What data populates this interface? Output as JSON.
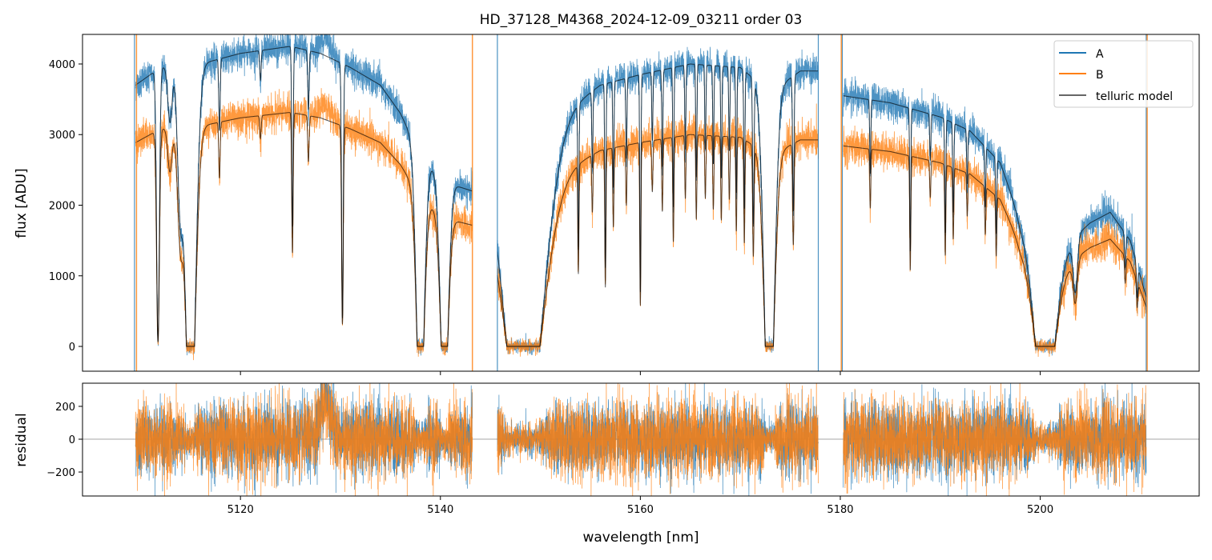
{
  "chart_data": [
    {
      "type": "line",
      "title": "HD_37128_M4368_2024-12-09_03211  order 03",
      "xlabel": "wavelength [nm]",
      "ylabel": "flux [ADU]",
      "xlim": [
        5104.2,
        5215.9
      ],
      "ylim": [
        -351,
        4419
      ],
      "xticks": [
        5120,
        5140,
        5160,
        5180,
        5200
      ],
      "xtick_labels": [
        "5120",
        "5140",
        "5160",
        "5180",
        "5200"
      ],
      "yticks": [
        0,
        1000,
        2000,
        3000,
        4000
      ],
      "ytick_labels": [
        "0",
        "1000",
        "2000",
        "3000",
        "4000"
      ],
      "legend": {
        "placement": "top-right",
        "entries": [
          "A",
          "B",
          "telluric model"
        ]
      },
      "colors": {
        "A": "#1f77b4",
        "B": "#ff7f0e",
        "model": "#000000"
      },
      "noise_sigma": {
        "A": 110,
        "B": 120
      },
      "segments": [
        {
          "range": [
            5109.5,
            5143.2
          ],
          "b_scale": 0.78,
          "continuum_A": [
            [
              5109.5,
              3700
            ],
            [
              5112,
              3950
            ],
            [
              5116,
              4000
            ],
            [
              5120,
              4150
            ],
            [
              5125,
              4250
            ],
            [
              5128,
              4150
            ],
            [
              5131,
              3950
            ],
            [
              5134,
              3700
            ],
            [
              5136,
              3300
            ],
            [
              5138,
              2700
            ],
            [
              5141,
              2300
            ],
            [
              5143.2,
              2200
            ]
          ],
          "lines": [
            [
              5111.75,
              0.98,
              0.2
            ],
            [
              5112.95,
              0.2,
              0.3
            ],
            [
              5114.0,
              0.5,
              0.4
            ],
            [
              5115.0,
              1.4,
              0.7
            ],
            [
              5117.9,
              0.25,
              0.1
            ],
            [
              5122.0,
              0.1,
              0.1
            ],
            [
              5125.2,
              0.6,
              0.1
            ],
            [
              5126.8,
              0.2,
              0.1
            ],
            [
              5130.2,
              0.9,
              0.12
            ],
            [
              5138.0,
              1.4,
              0.55
            ],
            [
              5140.4,
              1.4,
              0.55
            ]
          ]
        },
        {
          "range": [
            5145.7,
            5177.8
          ],
          "b_scale": 0.75,
          "continuum_A": [
            [
              5145.7,
              3000
            ],
            [
              5152,
              3300
            ],
            [
              5156,
              3700
            ],
            [
              5160,
              3850
            ],
            [
              5165,
              4000
            ],
            [
              5170,
              3950
            ],
            [
              5173,
              3600
            ],
            [
              5176,
              3900
            ],
            [
              5177.8,
              3900
            ]
          ],
          "lines": [
            [
              5148.3,
              1.5,
              2.6
            ],
            [
              5153.8,
              0.6,
              0.08
            ],
            [
              5155.2,
              0.3,
              0.08
            ],
            [
              5156.5,
              0.7,
              0.08
            ],
            [
              5157.3,
              0.4,
              0.08
            ],
            [
              5158.6,
              0.3,
              0.08
            ],
            [
              5160.0,
              0.8,
              0.08
            ],
            [
              5161.2,
              0.25,
              0.08
            ],
            [
              5162.2,
              0.35,
              0.08
            ],
            [
              5163.3,
              0.5,
              0.08
            ],
            [
              5164.5,
              0.3,
              0.08
            ],
            [
              5165.6,
              0.4,
              0.08
            ],
            [
              5166.5,
              0.3,
              0.08
            ],
            [
              5167.3,
              0.35,
              0.08
            ],
            [
              5168.1,
              0.4,
              0.08
            ],
            [
              5168.9,
              0.3,
              0.08
            ],
            [
              5169.6,
              0.45,
              0.08
            ],
            [
              5170.4,
              0.5,
              0.08
            ],
            [
              5171.3,
              0.55,
              0.1
            ],
            [
              5172.9,
              1.4,
              0.7
            ],
            [
              5175.3,
              0.5,
              0.1
            ]
          ]
        },
        {
          "range": [
            5180.3,
            5210.6
          ],
          "b_scale": 0.8,
          "continuum_A": [
            [
              5180.3,
              3550
            ],
            [
              5185,
              3450
            ],
            [
              5190,
              3250
            ],
            [
              5193,
              3050
            ],
            [
              5196,
              2600
            ],
            [
              5198,
              1800
            ],
            [
              5203,
              1500
            ],
            [
              5205,
              1750
            ],
            [
              5207,
              1900
            ],
            [
              5209,
              1500
            ],
            [
              5210.6,
              700
            ]
          ],
          "lines": [
            [
              5183.0,
              0.3,
              0.08
            ],
            [
              5187.0,
              0.6,
              0.08
            ],
            [
              5189.0,
              0.2,
              0.08
            ],
            [
              5190.5,
              0.5,
              0.08
            ],
            [
              5191.3,
              0.4,
              0.08
            ],
            [
              5192.7,
              0.25,
              0.08
            ],
            [
              5194.5,
              0.3,
              0.08
            ],
            [
              5195.6,
              0.4,
              0.08
            ],
            [
              5200.5,
              1.5,
              1.5
            ],
            [
              5203.5,
              0.5,
              0.3
            ],
            [
              5208.5,
              0.3,
              0.1
            ],
            [
              5209.7,
              0.4,
              0.1
            ]
          ]
        }
      ],
      "edge_spikes": {
        "A": [
          5109.4,
          5145.7,
          5177.8,
          5180.2,
          5210.6
        ],
        "B": [
          5109.6,
          5143.2,
          5180.1,
          5210.7
        ]
      }
    },
    {
      "type": "line",
      "xlabel": "wavelength [nm]",
      "ylabel": "residual",
      "xlim": [
        5104.2,
        5215.9
      ],
      "ylim": [
        -346,
        341
      ],
      "yticks": [
        -200,
        0,
        200
      ],
      "ytick_labels": [
        "−200",
        "0",
        "200"
      ],
      "reference_line": 0,
      "residual_features": [
        [
          5128.5,
          250,
          0.8
        ]
      ]
    }
  ]
}
